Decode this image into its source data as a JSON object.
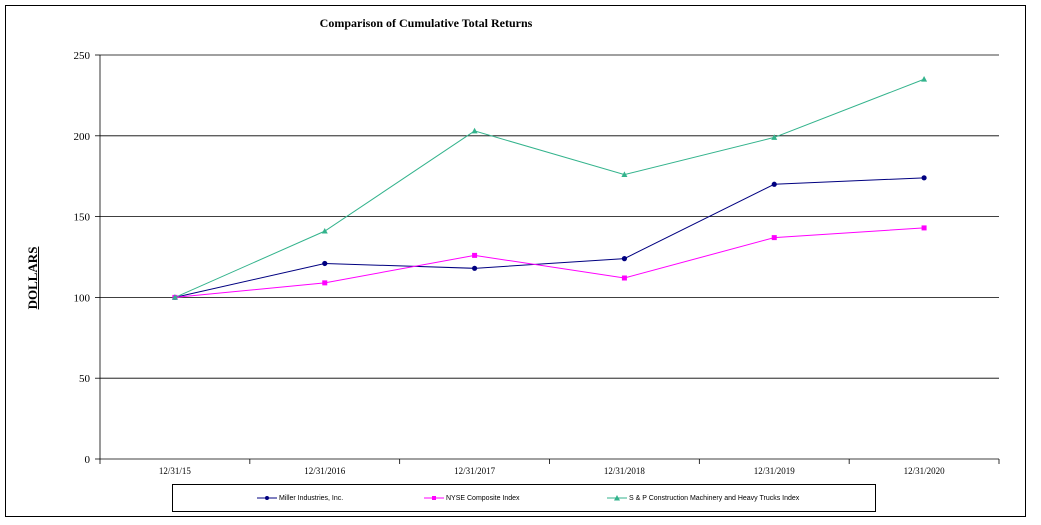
{
  "chart_data": {
    "type": "line",
    "title": "Comparison of Cumulative Total Returns",
    "ylabel": "DOLLARS",
    "xlabel": "",
    "categories": [
      "12/31/15",
      "12/31/2016",
      "12/31/2017",
      "12/31/2018",
      "12/31/2019",
      "12/31/2020"
    ],
    "ylim": [
      0,
      250
    ],
    "yticks": [
      "0",
      "50",
      "100",
      "150",
      "200",
      "250"
    ],
    "grid": true,
    "legend_position": "bottom",
    "series": [
      {
        "name": "Miller Industries, Inc.",
        "color": "#000080",
        "marker": "circle",
        "values": [
          100,
          121,
          118,
          124,
          170,
          174
        ]
      },
      {
        "name": "NYSE Composite Index",
        "color": "#ff00ff",
        "marker": "square",
        "values": [
          100,
          109,
          126,
          112,
          137,
          143
        ]
      },
      {
        "name": "S & P Construction Machinery and Heavy Trucks Index",
        "color": "#33b38c",
        "marker": "triangle",
        "values": [
          100,
          141,
          203,
          176,
          199,
          235
        ]
      }
    ]
  }
}
